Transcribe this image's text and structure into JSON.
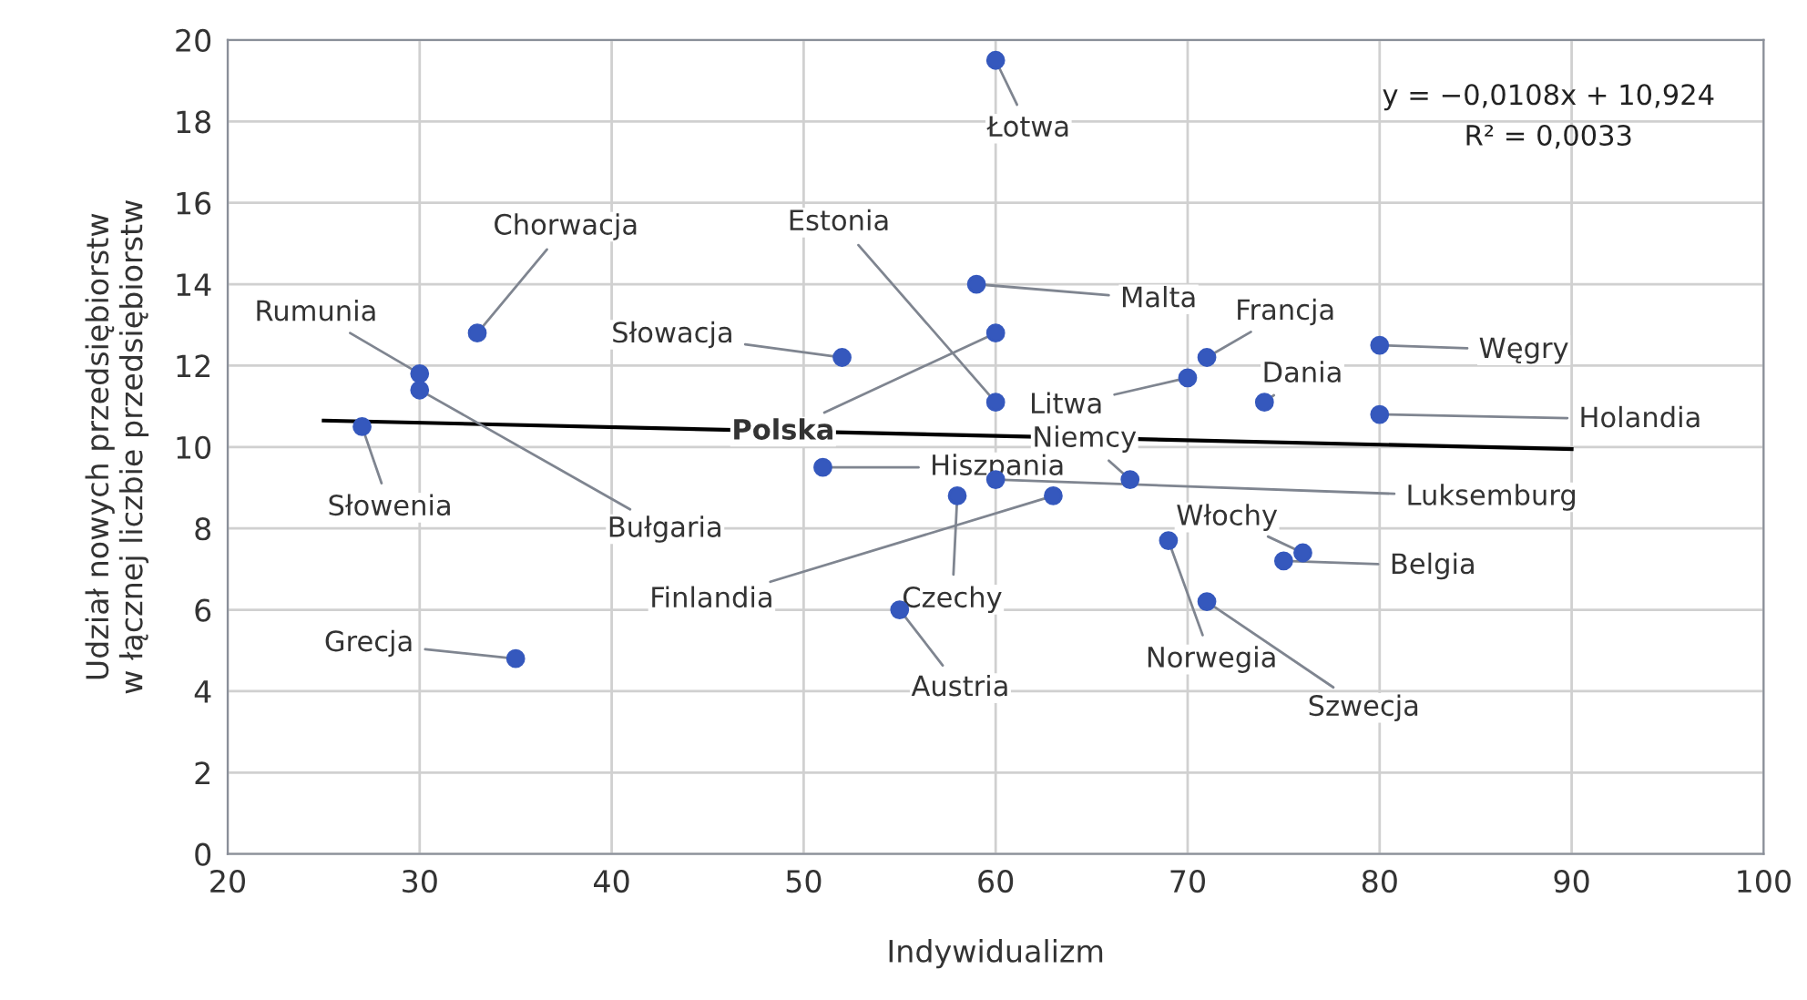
{
  "chart_data": {
    "type": "scatter",
    "xlabel": "Indywidualizm",
    "ylabel": "Udział nowych przedsiębiorstw\nw łącznej liczbie przedsiębiorstw",
    "xlim": [
      20,
      100
    ],
    "xticks": [
      20,
      30,
      40,
      50,
      60,
      70,
      80,
      90,
      100
    ],
    "ylim": [
      0,
      20
    ],
    "yticks": [
      0,
      2,
      4,
      6,
      8,
      10,
      12,
      14,
      16,
      18,
      20
    ],
    "grid": true,
    "legend": false,
    "series": [
      {
        "marker": "circle",
        "color": "#3558bd",
        "x": [
          60,
          33,
          30,
          30,
          27,
          52,
          59,
          60,
          60,
          70,
          71,
          80,
          74,
          80,
          51,
          67,
          60,
          58,
          63,
          55,
          35,
          69,
          76,
          75,
          71
        ],
        "values": [
          19.5,
          12.8,
          11.8,
          11.4,
          10.5,
          12.2,
          14.0,
          12.8,
          11.1,
          11.7,
          12.2,
          12.5,
          11.1,
          10.8,
          9.5,
          9.2,
          9.2,
          8.8,
          8.8,
          6.0,
          4.8,
          7.7,
          7.4,
          7.2,
          6.2
        ]
      },
      {
        "type": "line",
        "marker": "none",
        "line_style": "solid",
        "color": "#000000",
        "x": [
          25,
          90
        ],
        "values": [
          10.65,
          9.95
        ]
      }
    ],
    "annotations": [
      "y = −0,0108x + 10,924",
      "R² = 0,0033",
      {
        "text": "Łotwa",
        "x": 60,
        "y": 19.5
      },
      {
        "text": "Chorwacja",
        "x": 33,
        "y": 12.8
      },
      {
        "text": "Rumunia",
        "x": 30,
        "y": 11.8
      },
      {
        "text": "Bułgaria",
        "x": 30,
        "y": 11.4
      },
      {
        "text": "Słowenia",
        "x": 27,
        "y": 10.5
      },
      {
        "text": "Słowacja",
        "x": 52,
        "y": 12.2
      },
      {
        "text": "Malta",
        "x": 59,
        "y": 14.0
      },
      {
        "text": "Polska",
        "x": 60,
        "y": 12.8
      },
      {
        "text": "Estonia",
        "x": 60,
        "y": 11.1
      },
      {
        "text": "Litwa",
        "x": 70,
        "y": 11.7
      },
      {
        "text": "Francja",
        "x": 71,
        "y": 12.2
      },
      {
        "text": "Węgry",
        "x": 80,
        "y": 12.5
      },
      {
        "text": "Dania",
        "x": 74,
        "y": 11.1
      },
      {
        "text": "Holandia",
        "x": 80,
        "y": 10.8
      },
      {
        "text": "Hiszpania",
        "x": 51,
        "y": 9.5
      },
      {
        "text": "Niemcy",
        "x": 67,
        "y": 9.2
      },
      {
        "text": "Luksemburg",
        "x": 60,
        "y": 9.2
      },
      {
        "text": "Czechy",
        "x": 58,
        "y": 8.8
      },
      {
        "text": "Finlandia",
        "x": 63,
        "y": 8.8
      },
      {
        "text": "Austria",
        "x": 55,
        "y": 6.0
      },
      {
        "text": "Grecja",
        "x": 35,
        "y": 4.8
      },
      {
        "text": "Norwegia",
        "x": 69,
        "y": 7.7
      },
      {
        "text": "Włochy",
        "x": 76,
        "y": 7.4
      },
      {
        "text": "Belgia",
        "x": 75,
        "y": 7.2
      },
      {
        "text": "Szwecja",
        "x": 71,
        "y": 6.2
      }
    ]
  }
}
